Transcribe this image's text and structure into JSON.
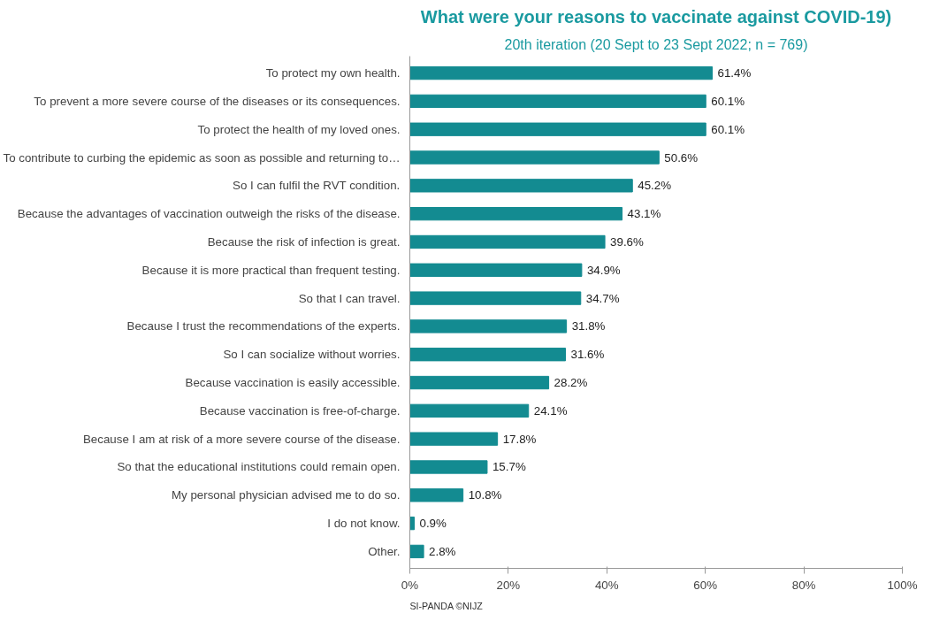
{
  "chart_data": {
    "type": "bar",
    "orientation": "horizontal",
    "title": "What were your reasons to vaccinate against COVID-19)",
    "subtitle": "20th iteration (20 Sept to 23 Sept 2022; n = 769)",
    "categories": [
      "To protect my own health.",
      "To prevent a more severe course of the diseases or its consequences.",
      "To protect the health of my loved ones.",
      "To contribute to curbing the epidemic as soon as possible and returning to…",
      "So I can fulfil the RVT condition.",
      "Because the advantages of vaccination outweigh the risks of the disease.",
      "Because the risk of infection is great.",
      "Because it is more practical than frequent testing.",
      "So that I can travel.",
      "Because I trust the recommendations of the experts.",
      "So I can socialize without worries.",
      "Because vaccination is easily accessible.",
      "Because vaccination is free-of-charge.",
      "Because I am at risk of a more severe course of the disease.",
      "So that the educational institutions could remain open.",
      "My personal physician advised me to do so.",
      "I do not know.",
      "Other."
    ],
    "values": [
      61.4,
      60.1,
      60.1,
      50.6,
      45.2,
      43.1,
      39.6,
      34.9,
      34.7,
      31.8,
      31.6,
      28.2,
      24.1,
      17.8,
      15.7,
      10.8,
      0.9,
      2.8
    ],
    "value_labels": [
      "61.4%",
      "60.1%",
      "60.1%",
      "50.6%",
      "45.2%",
      "43.1%",
      "39.6%",
      "34.9%",
      "34.7%",
      "31.8%",
      "31.6%",
      "28.2%",
      "24.1%",
      "17.8%",
      "15.7%",
      "10.8%",
      "0.9%",
      "2.8%"
    ],
    "color": "#138b91",
    "xlim": [
      0,
      100
    ],
    "xticks": [
      {
        "value": 0,
        "label": "0%"
      },
      {
        "value": 20,
        "label": "20%"
      },
      {
        "value": 40,
        "label": "40%"
      },
      {
        "value": 60,
        "label": "60%"
      },
      {
        "value": 80,
        "label": "80%"
      },
      {
        "value": 100,
        "label": "100%"
      }
    ],
    "grid": false,
    "annotations": [
      "SI-PANDA ©NIJZ"
    ]
  }
}
